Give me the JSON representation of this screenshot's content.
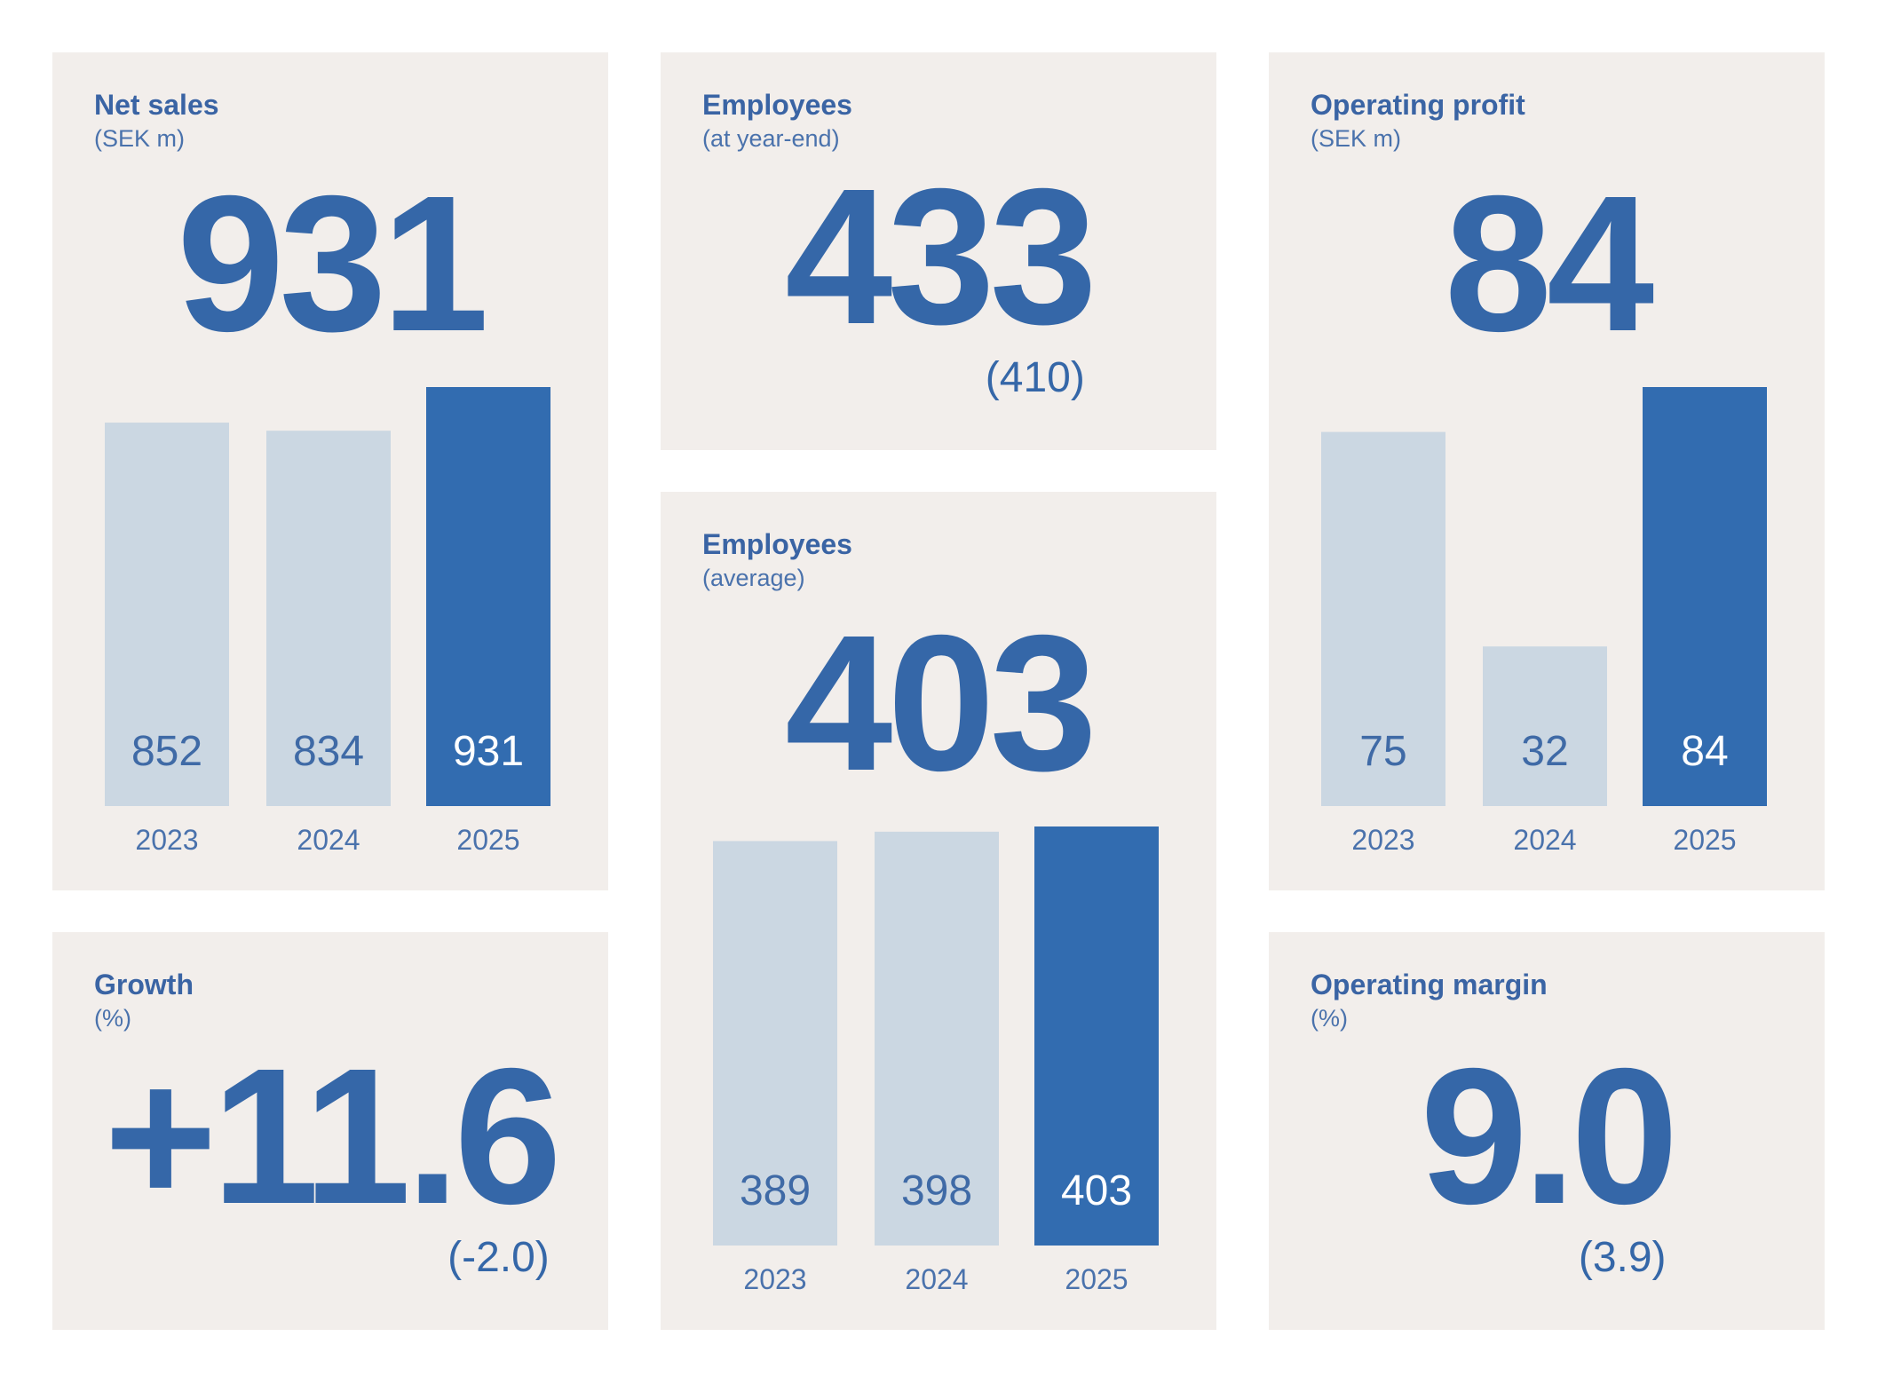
{
  "cards": [
    {
      "title": "Net sales",
      "subtitle": "(SEK m)",
      "value": "931",
      "chart": {
        "type": "bar",
        "categories": [
          "2023",
          "2024",
          "2025"
        ],
        "values": [
          852,
          834,
          931
        ],
        "colors": [
          "#cbd7e2",
          "#cbd7e2",
          "#326cb0"
        ]
      }
    },
    {
      "title": "Growth",
      "subtitle": "(%)",
      "value": "+11.6",
      "previous": "(-2.0)"
    },
    {
      "title": "Employees",
      "subtitle": "(at year-end)",
      "value": "433",
      "previous": "(410)"
    },
    {
      "title": "Employees",
      "subtitle": "(average)",
      "value": "403",
      "chart": {
        "type": "bar",
        "categories": [
          "2023",
          "2024",
          "2025"
        ],
        "values": [
          389,
          398,
          403
        ],
        "colors": [
          "#cbd7e2",
          "#cbd7e2",
          "#326cb0"
        ]
      }
    },
    {
      "title": "Operating profit",
      "subtitle": "(SEK m)",
      "value": "84",
      "chart": {
        "type": "bar",
        "categories": [
          "2023",
          "2024",
          "2025"
        ],
        "values": [
          75,
          32,
          84
        ],
        "colors": [
          "#cbd7e2",
          "#cbd7e2",
          "#326cb0"
        ]
      }
    },
    {
      "title": "Operating margin",
      "subtitle": "(%)",
      "value": "9.0",
      "previous": "(3.9)"
    }
  ]
}
